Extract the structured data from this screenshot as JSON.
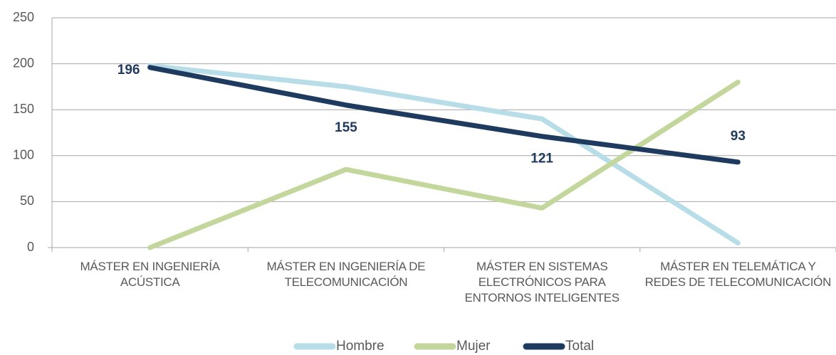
{
  "chart_data": {
    "type": "line",
    "categories": [
      "MÁSTER EN INGENIERÍA ACÚSTICA",
      "MÁSTER EN INGENIERÍA DE TELECOMUNICACIÓN",
      "MÁSTER EN SISTEMAS ELECTRÓNICOS PARA ENTORNOS INTELIGENTES",
      "MÁSTER EN TELEMÁTICA Y REDES DE TELECOMUNICACIÓN"
    ],
    "series": [
      {
        "name": "Hombre",
        "color": "#b7dde8",
        "values": [
          198,
          175,
          140,
          5
        ]
      },
      {
        "name": "Mujer",
        "color": "#c3d69b",
        "values": [
          0,
          85,
          43,
          180
        ]
      },
      {
        "name": "Total",
        "color": "#1f3a5f",
        "values": [
          196,
          155,
          121,
          93
        ],
        "data_labels": true
      }
    ],
    "ylim": [
      0,
      250
    ],
    "yticks": [
      0,
      50,
      100,
      150,
      200,
      250
    ],
    "grid": true,
    "legend": "bottom"
  }
}
